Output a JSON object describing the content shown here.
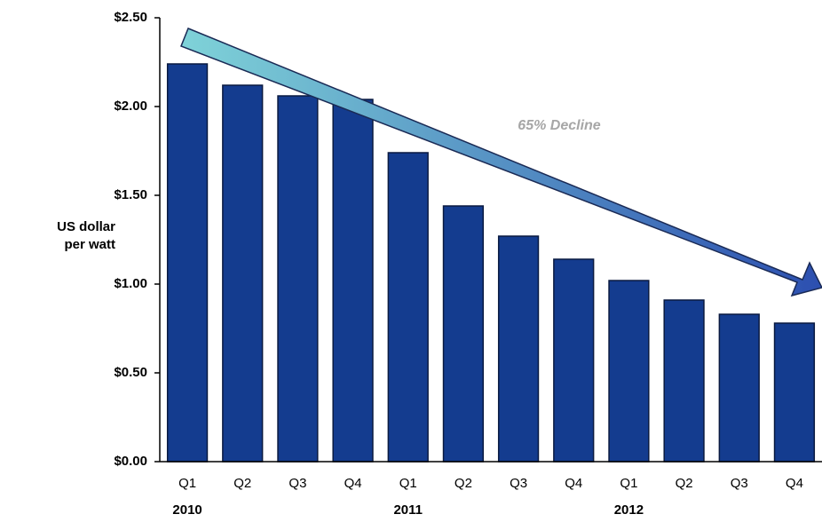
{
  "chart_data": {
    "type": "bar",
    "y_label": [
      "US dollar",
      "per watt"
    ],
    "annotation": "65% Decline",
    "categories": [
      "Q1",
      "Q2",
      "Q3",
      "Q4",
      "Q1",
      "Q2",
      "Q3",
      "Q4",
      "Q1",
      "Q2",
      "Q3",
      "Q4"
    ],
    "groups": [
      "2010",
      "2011",
      "2012"
    ],
    "values": [
      2.24,
      2.12,
      2.06,
      2.04,
      1.74,
      1.44,
      1.27,
      1.14,
      1.02,
      0.91,
      0.83,
      0.78
    ],
    "color": "#143c8f",
    "ylim": [
      0,
      2.5
    ],
    "yticks": [
      {
        "value": 0,
        "label": "$0.00"
      },
      {
        "value": 0.5,
        "label": "$0.50"
      },
      {
        "value": 1,
        "label": "$1.00"
      },
      {
        "value": 1.5,
        "label": "$1.50"
      },
      {
        "value": 2,
        "label": "$2.00"
      },
      {
        "value": 2.5,
        "label": "$2.50"
      }
    ]
  }
}
